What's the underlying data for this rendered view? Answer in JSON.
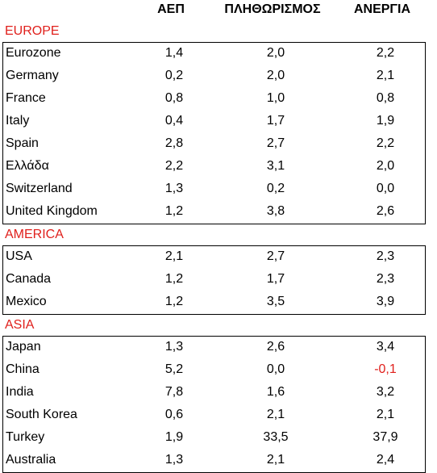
{
  "headers": [
    "ΑΕΠ",
    "ΠΛΗΘΩΡΙΣΜΟΣ",
    "ΑΝΕΡΓΙΑ"
  ],
  "colors": {
    "section_label": "#e0201c",
    "negative": "#e0201c",
    "text": "#000000"
  },
  "sections": [
    {
      "label": "EUROPE",
      "rows": [
        {
          "name": "Eurozone",
          "values": [
            "1,4",
            "2,0",
            "2,2"
          ]
        },
        {
          "name": "Germany",
          "values": [
            "0,2",
            "2,0",
            "2,1"
          ]
        },
        {
          "name": "France",
          "values": [
            "0,8",
            "1,0",
            "0,8"
          ]
        },
        {
          "name": "Italy",
          "values": [
            "0,4",
            "1,7",
            "1,9"
          ]
        },
        {
          "name": "Spain",
          "values": [
            "2,8",
            "2,7",
            "2,2"
          ]
        },
        {
          "name": "Ελλάδα",
          "values": [
            "2,2",
            "3,1",
            "2,0"
          ]
        },
        {
          "name": "Switzerland",
          "values": [
            "1,3",
            "0,2",
            "0,0"
          ]
        },
        {
          "name": "United Kingdom",
          "values": [
            "1,2",
            "3,8",
            "2,6"
          ]
        }
      ]
    },
    {
      "label": "AMERICA",
      "rows": [
        {
          "name": "USA",
          "values": [
            "2,1",
            "2,7",
            "2,3"
          ]
        },
        {
          "name": "Canada",
          "values": [
            "1,2",
            "1,7",
            "2,3"
          ]
        },
        {
          "name": "Mexico",
          "values": [
            "1,2",
            "3,5",
            "3,9"
          ]
        }
      ]
    },
    {
      "label": "ASIA",
      "rows": [
        {
          "name": "Japan",
          "values": [
            "1,3",
            "2,6",
            "3,4"
          ]
        },
        {
          "name": "China",
          "values": [
            "5,2",
            "0,0",
            "-0,1"
          ]
        },
        {
          "name": "India",
          "values": [
            "7,8",
            "1,6",
            "3,2"
          ]
        },
        {
          "name": "South Korea",
          "values": [
            "0,6",
            "2,1",
            "2,1"
          ]
        },
        {
          "name": "Turkey",
          "values": [
            "1,9",
            "33,5",
            "37,9"
          ]
        },
        {
          "name": "Australia",
          "values": [
            "1,3",
            "2,1",
            "2,4"
          ]
        }
      ]
    }
  ]
}
